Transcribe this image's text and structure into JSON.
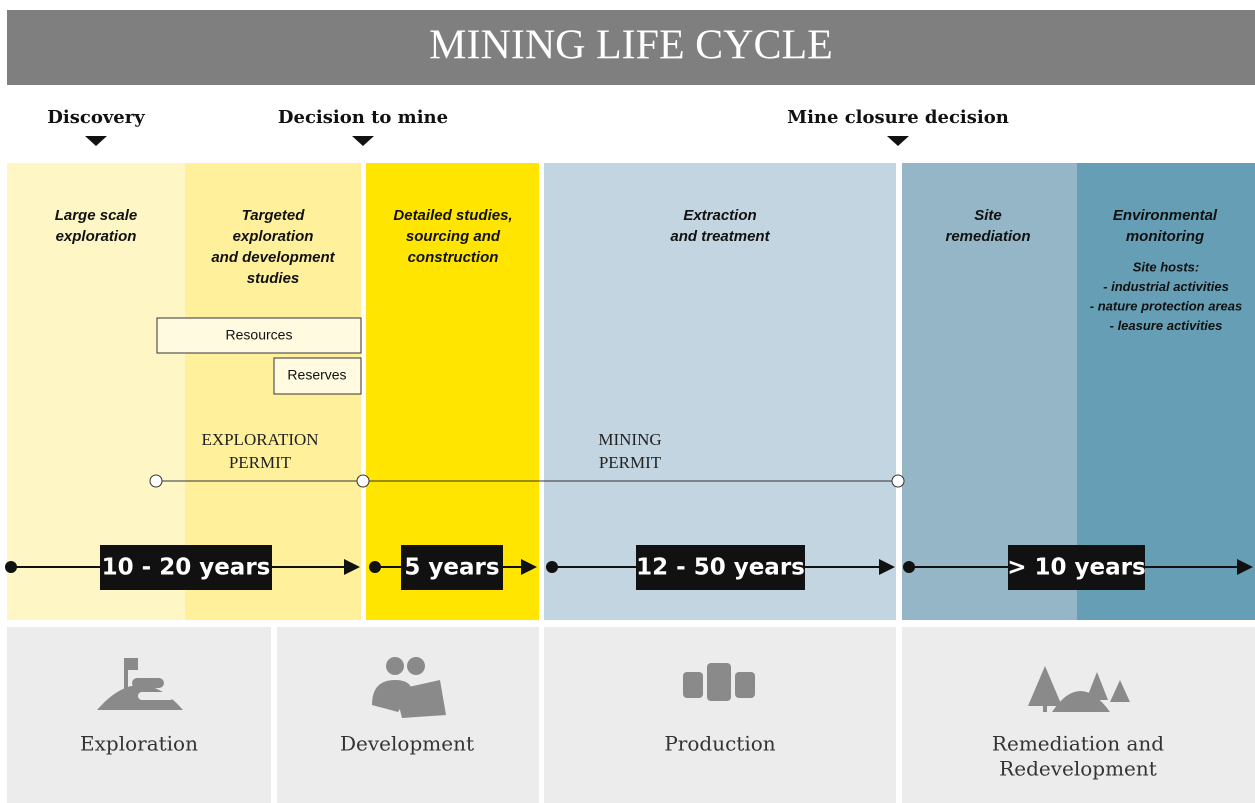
{
  "title": "MINING LIFE CYCLE",
  "milestones": [
    "Discovery",
    "Decision to mine",
    "Mine closure decision"
  ],
  "stages": [
    {
      "lines": [
        "Large scale",
        "exploration"
      ]
    },
    {
      "lines": [
        "Targeted",
        "exploration",
        "and development",
        "studies"
      ]
    },
    {
      "lines": [
        "Detailed studies,",
        "sourcing and",
        "construction"
      ]
    },
    {
      "lines": [
        "Extraction",
        "and treatment"
      ]
    },
    {
      "lines": [
        "Site",
        "remediation"
      ]
    },
    {
      "lines": [
        "Environmental",
        "monitoring"
      ]
    }
  ],
  "site_hosts": [
    "Site hosts:",
    "- industrial activities",
    "- nature protection areas",
    "- leasure activities"
  ],
  "boxes": [
    "Resources",
    "Reserves"
  ],
  "permits": [
    {
      "lines": [
        "EXPLORATION",
        "PERMIT"
      ]
    },
    {
      "lines": [
        "MINING",
        "PERMIT"
      ]
    }
  ],
  "durations": [
    "10 - 20 years",
    "5 years",
    "12 - 50 years",
    "> 10 years"
  ],
  "phases": [
    {
      "lines": [
        "Exploration"
      ]
    },
    {
      "lines": [
        "Development"
      ]
    },
    {
      "lines": [
        "Production"
      ]
    },
    {
      "lines": [
        "Remediation and",
        "Redevelopment"
      ]
    }
  ]
}
